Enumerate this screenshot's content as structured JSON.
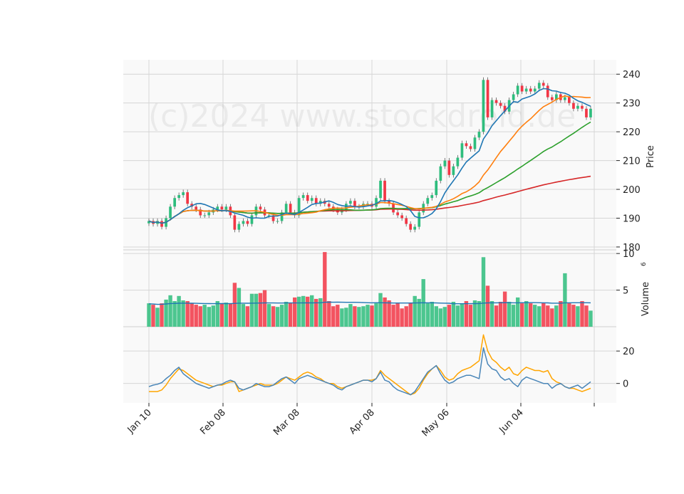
{
  "watermark": "(c)2024 www.stockdroid.de",
  "chart_data": {
    "type": "candlestick",
    "x_ticks": [
      "Jan 10",
      "Feb 08",
      "Mar 08",
      "Apr 08",
      "May 06",
      "Jun 04"
    ],
    "panels": {
      "price": {
        "ylabel": "Price",
        "ylim": [
          179,
          245
        ],
        "y_ticks": [
          180,
          190,
          200,
          210,
          220,
          230,
          240
        ],
        "grid": true
      },
      "volume": {
        "ylabel": "Volume",
        "ylabel_exponent": "6",
        "ylim": [
          0,
          10.5
        ],
        "y_ticks": [
          5,
          10
        ],
        "grid": true
      },
      "oscillator": {
        "ylim": [
          -12,
          35
        ],
        "y_ticks": [
          0,
          20
        ],
        "grid": true
      }
    },
    "colors": {
      "up": "#2ebd7d",
      "down": "#f23645",
      "ma_short": "#1f77b4",
      "ma_mid": "#ff7f0e",
      "ma_long": "#2ca02c",
      "ma_longest": "#d62728",
      "vol_avg": "#1f77b4",
      "osc_fast": "#4a86b8",
      "osc_slow": "#ffa500"
    },
    "close": [
      189,
      188,
      189,
      187,
      190,
      194,
      197,
      198,
      199,
      195,
      194,
      193,
      191,
      191,
      192,
      193,
      194,
      193,
      194,
      191,
      186,
      188,
      189,
      188,
      191,
      194,
      193,
      191,
      191,
      189,
      189,
      192,
      195,
      192,
      191,
      197,
      198,
      196,
      197,
      195,
      196,
      195,
      194,
      193,
      192,
      193,
      195,
      196,
      194,
      194,
      195,
      195,
      194,
      197,
      203,
      196,
      195,
      192,
      191,
      190,
      188,
      186,
      187,
      192,
      195,
      197,
      198,
      203,
      208,
      210,
      205,
      208,
      211,
      216,
      215,
      214,
      218,
      220,
      238,
      225,
      231,
      230,
      229,
      227,
      231,
      233,
      236,
      234,
      235,
      234,
      235,
      237,
      236,
      232,
      231,
      233,
      231,
      232,
      230,
      228,
      229,
      228,
      225,
      228
    ],
    "ohlc_note": "open = previous close",
    "volume": [
      3.2,
      3.0,
      2.6,
      3.2,
      3.7,
      4.3,
      3.5,
      4.2,
      3.6,
      3.5,
      3.2,
      3.0,
      2.8,
      3.0,
      2.7,
      2.9,
      3.5,
      3.2,
      3.3,
      3.2,
      6.0,
      5.3,
      3.1,
      2.8,
      4.5,
      4.5,
      4.6,
      5.0,
      3.1,
      2.8,
      2.7,
      3.0,
      3.4,
      3.3,
      4.0,
      4.1,
      4.2,
      4.1,
      4.3,
      3.8,
      3.9,
      10.2,
      3.5,
      2.8,
      3.0,
      2.5,
      2.6,
      3.1,
      2.8,
      2.7,
      2.8,
      3.0,
      2.9,
      3.2,
      4.6,
      4.0,
      3.6,
      3.0,
      3.2,
      2.5,
      2.8,
      3.3,
      4.2,
      3.8,
      6.5,
      3.2,
      3.4,
      2.8,
      2.5,
      2.7,
      3.0,
      3.4,
      2.9,
      3.1,
      3.5,
      3.0,
      3.6,
      3.5,
      9.5,
      5.6,
      3.5,
      2.9,
      3.4,
      4.8,
      3.4,
      3.0,
      4.0,
      3.2,
      3.5,
      3.2,
      3.0,
      2.8,
      3.3,
      2.9,
      2.5,
      2.9,
      3.5,
      7.3,
      3.2,
      3.0,
      2.8,
      3.5,
      2.9,
      2.2
    ],
    "vol_avg": 3.1,
    "osc_fast": [
      -2,
      -1,
      -0.5,
      0.5,
      3,
      5,
      8,
      10,
      6,
      4,
      2,
      0,
      -1,
      -2,
      -3,
      -2,
      -1,
      -0.5,
      1,
      2,
      1,
      -3,
      -4,
      -3,
      -2,
      0,
      -1,
      -2,
      -2,
      -1,
      1,
      3,
      4,
      2,
      0,
      3,
      4,
      5,
      4,
      3,
      2,
      1,
      0,
      -1,
      -3,
      -4,
      -2,
      -1,
      0,
      1,
      2,
      2,
      1,
      3,
      7,
      2,
      1,
      -2,
      -4,
      -5,
      -6,
      -7,
      -5,
      -1,
      3,
      7,
      9,
      11,
      6,
      2,
      0,
      1,
      3,
      4,
      5,
      5,
      4,
      3,
      22,
      12,
      9,
      8,
      4,
      2,
      3,
      0,
      -2,
      2,
      4,
      3,
      2,
      1,
      0,
      0,
      -3,
      -1,
      0,
      -2,
      -3,
      -2,
      -1,
      -3,
      -1,
      1
    ],
    "osc_slow": [
      -5,
      -5,
      -5,
      -4,
      -1,
      3,
      6,
      9,
      8,
      6,
      4,
      2,
      1,
      0,
      -1,
      -2,
      -1,
      -1,
      0,
      1,
      1,
      -5,
      -4,
      -3,
      -2,
      -1,
      0,
      -1,
      -1,
      -1,
      0,
      2,
      4,
      3,
      2,
      4,
      6,
      7,
      6,
      4,
      3,
      1,
      0,
      0,
      -2,
      -3,
      -2,
      -1,
      0,
      1,
      2,
      2,
      2,
      3,
      8,
      5,
      3,
      1,
      -1,
      -3,
      -5,
      -7,
      -6,
      -3,
      2,
      6,
      9,
      11,
      8,
      4,
      2,
      3,
      6,
      8,
      9,
      10,
      12,
      14,
      30,
      20,
      15,
      13,
      10,
      8,
      10,
      6,
      5,
      8,
      10,
      9,
      8,
      8,
      7,
      8,
      3,
      1,
      0,
      -2,
      -3,
      -3,
      -4,
      -5,
      -4,
      -3
    ]
  }
}
